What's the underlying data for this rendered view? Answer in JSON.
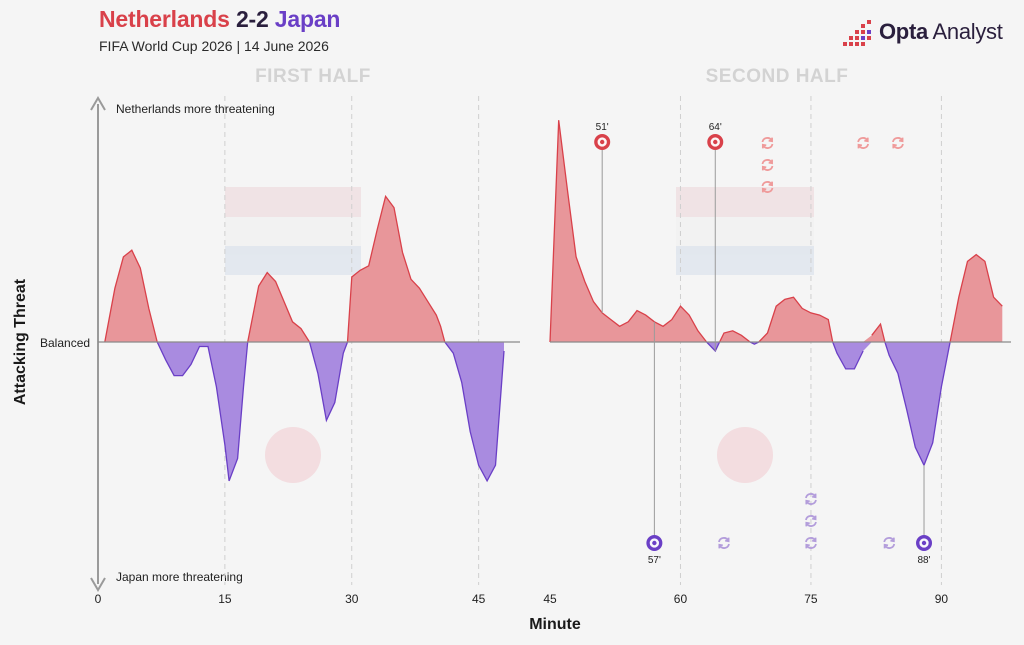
{
  "header": {
    "home_team": "Netherlands",
    "score": "2-2",
    "away_team": "Japan",
    "subtitle": "FIFA World Cup 2026 | 14 June 2026"
  },
  "logo": {
    "bold": "Opta",
    "rest": " Analyst"
  },
  "colors": {
    "home": "#e8969a",
    "home_line": "#d9414a",
    "away": "#a98be0",
    "away_line": "#6a3fc6",
    "goal_home": "#d9414a",
    "goal_away": "#6a3fc6",
    "sub_home": "#ef9a9a",
    "sub_away": "#b39ddb"
  },
  "chart_data": {
    "type": "area",
    "xlabel": "Minute",
    "ylabel": "Attacking Threat",
    "y_top_label": "Netherlands more threatening",
    "y_bottom_label": "Japan more threatening",
    "balanced_label": "Balanced",
    "halves": [
      {
        "label": "FIRST HALF",
        "xlim": [
          0,
          48
        ],
        "ticks": [
          0,
          15,
          30,
          45
        ],
        "gridlines": [
          15,
          30,
          45
        ],
        "series": [
          [
            0.8,
            0
          ],
          [
            2,
            0.24
          ],
          [
            3,
            0.38
          ],
          [
            4,
            0.41
          ],
          [
            5,
            0.33
          ],
          [
            6,
            0.15
          ],
          [
            7,
            0
          ],
          [
            8,
            -0.08
          ],
          [
            9,
            -0.15
          ],
          [
            10,
            -0.15
          ],
          [
            11,
            -0.1
          ],
          [
            12,
            -0.02
          ],
          [
            13,
            -0.02
          ],
          [
            14,
            -0.2
          ],
          [
            15,
            -0.46
          ],
          [
            15.5,
            -0.62
          ],
          [
            16.5,
            -0.52
          ],
          [
            17.2,
            -0.2
          ],
          [
            17.7,
            0
          ],
          [
            19,
            0.25
          ],
          [
            20,
            0.31
          ],
          [
            21,
            0.27
          ],
          [
            22,
            0.18
          ],
          [
            23,
            0.09
          ],
          [
            24,
            0.06
          ],
          [
            25,
            0
          ],
          [
            26,
            -0.14
          ],
          [
            27,
            -0.35
          ],
          [
            28,
            -0.27
          ],
          [
            29,
            -0.05
          ],
          [
            29.5,
            0
          ],
          [
            30,
            0.29
          ],
          [
            31,
            0.32
          ],
          [
            32,
            0.34
          ],
          [
            33,
            0.5
          ],
          [
            34,
            0.65
          ],
          [
            35,
            0.6
          ],
          [
            36,
            0.4
          ],
          [
            37,
            0.28
          ],
          [
            38,
            0.24
          ],
          [
            39,
            0.18
          ],
          [
            40,
            0.12
          ],
          [
            40.5,
            0.07
          ],
          [
            41,
            0
          ],
          [
            42,
            -0.05
          ],
          [
            43,
            -0.18
          ],
          [
            44,
            -0.4
          ],
          [
            45,
            -0.55
          ],
          [
            46,
            -0.62
          ],
          [
            47,
            -0.55
          ],
          [
            48,
            -0.04
          ]
        ],
        "goals": []
      },
      {
        "label": "SECOND HALF",
        "xlim": [
          45,
          98
        ],
        "ticks": [
          45,
          60,
          75,
          90
        ],
        "gridlines": [
          60,
          75,
          90
        ],
        "series": [
          [
            45,
            0
          ],
          [
            46,
            0.99
          ],
          [
            47,
            0.68
          ],
          [
            48,
            0.38
          ],
          [
            49,
            0.27
          ],
          [
            50,
            0.18
          ],
          [
            51,
            0.13
          ],
          [
            52,
            0.1
          ],
          [
            53,
            0.07
          ],
          [
            54,
            0.09
          ],
          [
            55,
            0.14
          ],
          [
            56,
            0.12
          ],
          [
            57,
            0.09
          ],
          [
            58,
            0.07
          ],
          [
            59,
            0.1
          ],
          [
            60,
            0.16
          ],
          [
            61,
            0.12
          ],
          [
            62,
            0.05
          ],
          [
            63,
            0
          ],
          [
            64,
            -0.04
          ],
          [
            64.5,
            0
          ],
          [
            65,
            0.04
          ],
          [
            66,
            0.05
          ],
          [
            67,
            0.03
          ],
          [
            68,
            0
          ],
          [
            68.5,
            -0.01
          ],
          [
            69,
            0
          ],
          [
            70,
            0.04
          ],
          [
            71,
            0.16
          ],
          [
            72,
            0.19
          ],
          [
            73,
            0.2
          ],
          [
            74,
            0.15
          ],
          [
            75,
            0.13
          ],
          [
            76,
            0.12
          ],
          [
            77,
            0.1
          ],
          [
            77.5,
            0
          ],
          [
            78,
            -0.05
          ],
          [
            79,
            -0.12
          ],
          [
            80,
            -0.12
          ],
          [
            81,
            -0.04
          ],
          [
            82,
            0.03
          ],
          [
            83,
            0.08
          ],
          [
            83.5,
            0
          ],
          [
            84,
            -0.06
          ],
          [
            85,
            -0.14
          ],
          [
            86,
            -0.3
          ],
          [
            87,
            -0.47
          ],
          [
            88,
            -0.55
          ],
          [
            89,
            -0.45
          ],
          [
            90,
            -0.2
          ],
          [
            91,
            0
          ],
          [
            92,
            0.2
          ],
          [
            93,
            0.36
          ],
          [
            94,
            0.39
          ],
          [
            95,
            0.36
          ],
          [
            96,
            0.2
          ],
          [
            97,
            0.16
          ]
        ],
        "goals": [
          {
            "team": "home",
            "minute": 51,
            "label": "51'"
          },
          {
            "team": "home",
            "minute": 64,
            "label": "64'"
          },
          {
            "team": "away",
            "minute": 57,
            "label": "57'"
          },
          {
            "team": "away",
            "minute": 88,
            "label": "88'"
          }
        ]
      }
    ],
    "substitutions": [
      {
        "team": "home",
        "minute": 70
      },
      {
        "team": "home",
        "minute": 70
      },
      {
        "team": "home",
        "minute": 70
      },
      {
        "team": "home",
        "minute": 81
      },
      {
        "team": "home",
        "minute": 85
      },
      {
        "team": "away",
        "minute": 65
      },
      {
        "team": "away",
        "minute": 75
      },
      {
        "team": "away",
        "minute": 75
      },
      {
        "team": "away",
        "minute": 75
      },
      {
        "team": "away",
        "minute": 84
      }
    ]
  }
}
